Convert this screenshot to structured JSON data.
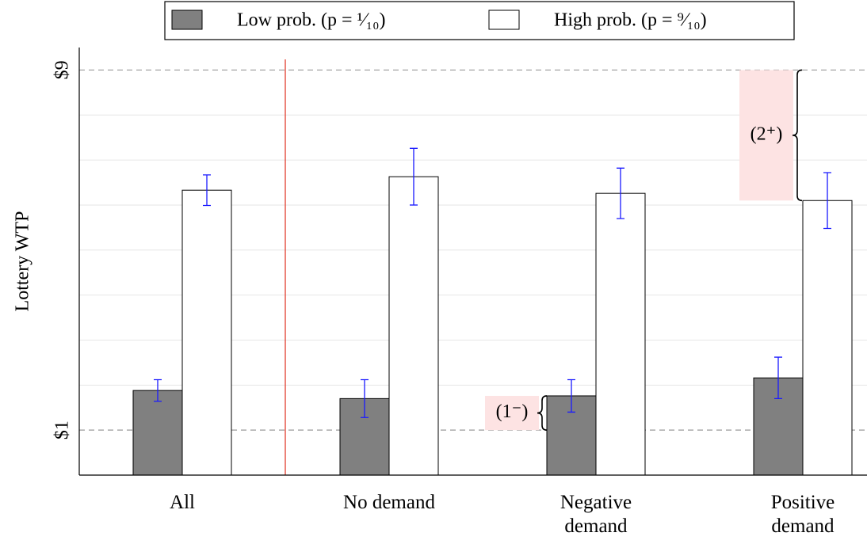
{
  "chart_data": {
    "type": "bar",
    "y_label": "Lottery WTP",
    "categories": [
      "All",
      "No demand",
      "Negative\ndemand",
      "Positive\ndemand"
    ],
    "series": [
      {
        "name": "Low prob. (p = ¹⁄₁₀)",
        "color": "#808080",
        "values": [
          1.88,
          1.7,
          1.76,
          2.16
        ],
        "errors": [
          0.24,
          0.42,
          0.36,
          0.46
        ]
      },
      {
        "name": "High prob. (p = ⁹⁄₁₀)",
        "color": "#ffffff",
        "values": [
          6.33,
          6.63,
          6.26,
          6.1
        ],
        "errors": [
          0.34,
          0.63,
          0.56,
          0.62
        ]
      }
    ],
    "ylim": [
      0,
      9.5
    ],
    "yticks": [
      {
        "value": 1,
        "label": "$1"
      },
      {
        "value": 9,
        "label": "$9"
      }
    ],
    "minor_yticks": [
      2,
      3,
      4,
      5,
      6,
      7,
      8
    ],
    "error_color": "#1a1aff",
    "annotations": [
      {
        "text": "(1⁻)"
      },
      {
        "text": "(2⁺)"
      }
    ]
  }
}
